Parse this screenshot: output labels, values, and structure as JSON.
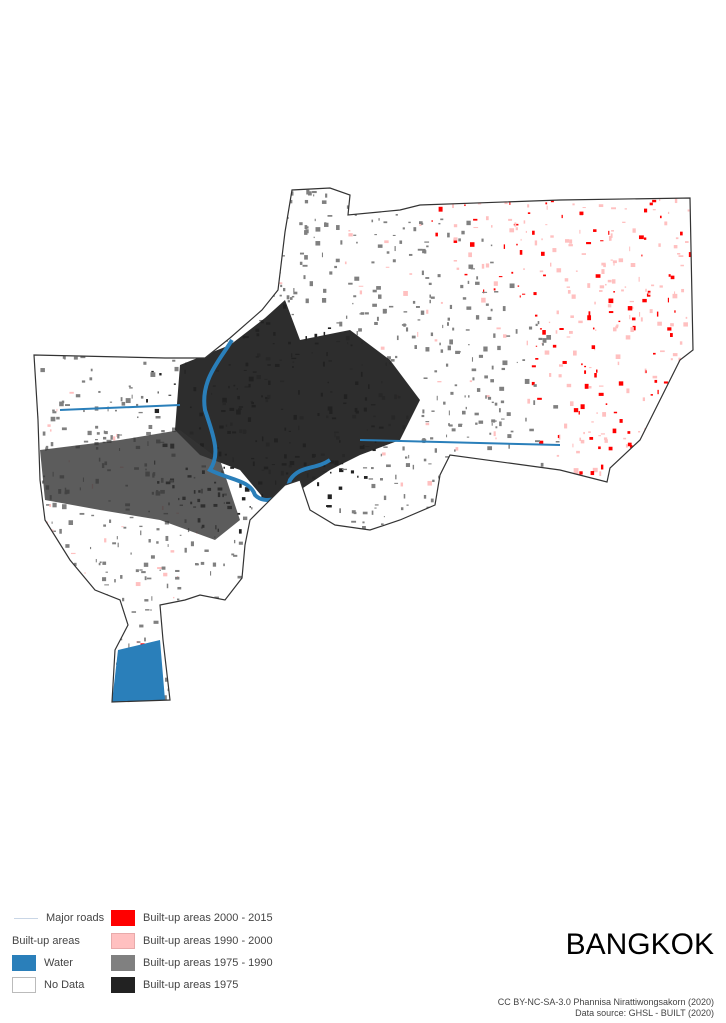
{
  "title": "BANGKOK",
  "credits": {
    "license": "CC BY-NC-SA-3.0 Phannisa Nirattiwongsakorn (2020)",
    "source": "Data source: GHSL - BUILT (2020)"
  },
  "legend": {
    "roads_label": "Major roads",
    "builtup_heading": "Built-up areas",
    "water_label": "Water",
    "nodata_label": "No Data",
    "periods": [
      {
        "label": "Built-up areas 2000 - 2015",
        "color": "#ff0000"
      },
      {
        "label": "Built-up areas 1990 - 2000",
        "color": "#ffc0c0"
      },
      {
        "label": "Built-up areas 1975 - 1990",
        "color": "#808080"
      },
      {
        "label": "Built-up areas 1975",
        "color": "#222222"
      }
    ]
  },
  "colors": {
    "water": "#2a7fba",
    "nodata": "#ffffff",
    "roads": "#c9d6e6",
    "boundary": "#333333"
  }
}
